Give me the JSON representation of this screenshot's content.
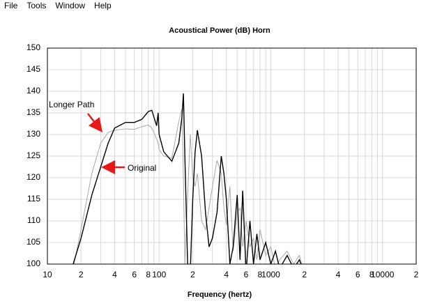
{
  "menu": [
    "File",
    "Tools",
    "Window",
    "Help"
  ],
  "chart_data": {
    "type": "line",
    "title": "Acoustical Power (dB)   Horn",
    "x_label": "Frequency (hertz)",
    "xscale": "log",
    "grid": true,
    "x": [
      17,
      20,
      25,
      30,
      35,
      40,
      50,
      60,
      70,
      80,
      86,
      95,
      98,
      100,
      110,
      130,
      150,
      160,
      165,
      170,
      180,
      190,
      200,
      210,
      220,
      240,
      260,
      280,
      300,
      330,
      360,
      380,
      400,
      430,
      460,
      500,
      530,
      560,
      600,
      650,
      700,
      750,
      800,
      900,
      1000,
      1100,
      1200,
      1400,
      1600,
      1800,
      2000
    ],
    "series": [
      {
        "name": "Original",
        "color": "#000000",
        "values": [
          100,
          106,
          116,
          122.5,
          128,
          131.5,
          132.8,
          132.8,
          133.5,
          135.3,
          135.6,
          132,
          135,
          130,
          126,
          123.8,
          128,
          134,
          139.5,
          125,
          100,
          98,
          115,
          126,
          131,
          125,
          112,
          104,
          106,
          112,
          125,
          121,
          115,
          100,
          104,
          116,
          101,
          117,
          98,
          110,
          100,
          107,
          101,
          105,
          100,
          103,
          99,
          102,
          99,
          101,
          98
        ]
      },
      {
        "name": "Longer Path",
        "color": "#a8a8a8",
        "values": [
          99,
          108,
          121,
          128,
          130.5,
          131,
          131.3,
          131.2,
          131.8,
          132.2,
          131.5,
          129,
          128,
          126.5,
          125,
          124.5,
          133,
          136,
          120,
          100,
          116,
          130,
          120,
          118,
          121,
          110,
          108,
          113,
          118,
          124,
          121,
          113,
          109,
          118,
          103,
          112,
          113,
          104,
          110,
          104,
          106,
          101,
          108,
          102,
          104,
          99,
          101,
          103,
          100,
          102,
          98
        ]
      }
    ],
    "xlim": [
      10,
      20000
    ],
    "xticks": [
      10,
      {
        "value": 20,
        "label": "2"
      },
      {
        "value": 40,
        "label": "4"
      },
      {
        "value": 60,
        "label": "6"
      },
      {
        "value": 80,
        "label": "8"
      },
      100,
      {
        "value": 200,
        "label": "2"
      },
      {
        "value": 400,
        "label": "4"
      },
      {
        "value": 600,
        "label": "6"
      },
      {
        "value": 800,
        "label": "8"
      },
      1000,
      {
        "value": 2000,
        "label": "2"
      },
      {
        "value": 4000,
        "label": "4"
      },
      {
        "value": 6000,
        "label": "6"
      },
      {
        "value": 8000,
        "label": "8"
      },
      10000,
      {
        "value": 20000,
        "label": "2"
      }
    ],
    "x_minor_grid": [
      30,
      50,
      70,
      90,
      300,
      500,
      700,
      900,
      3000,
      5000,
      7000,
      9000
    ],
    "ylim": [
      100,
      150
    ],
    "yticks": [
      100,
      105,
      110,
      115,
      120,
      125,
      130,
      135,
      140,
      145,
      150
    ],
    "annotations": [
      "Longer Path",
      "Original"
    ],
    "annotation_color": "#e8191b"
  }
}
